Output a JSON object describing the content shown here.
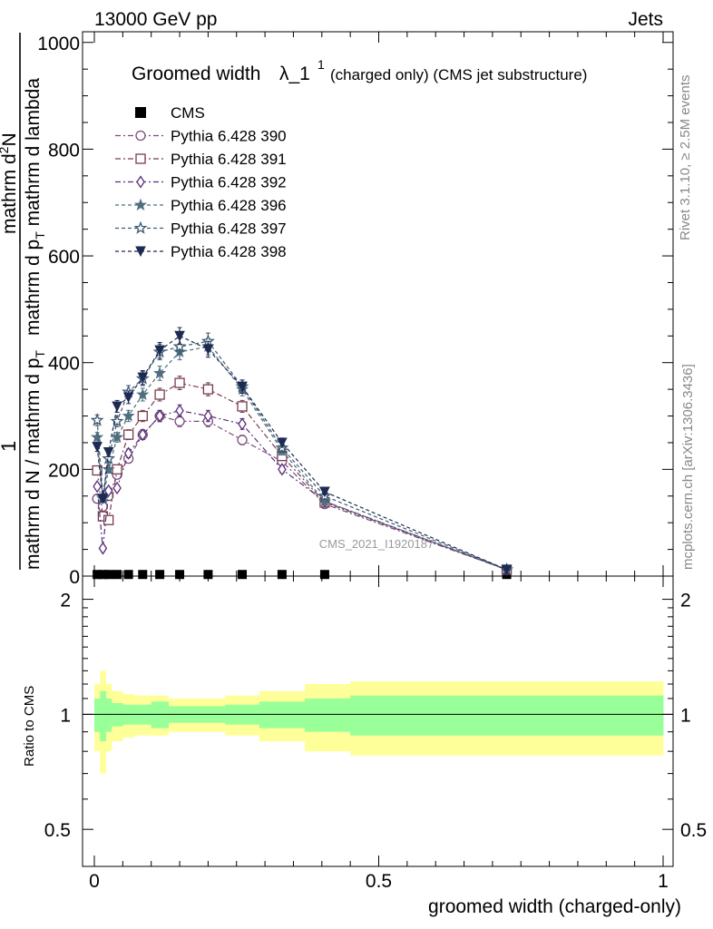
{
  "header": {
    "left": "13000 GeV pp",
    "right": "Jets"
  },
  "side_labels": {
    "rivet": "Rivet 3.1.10, ≥ 2.5M events",
    "mcplots": "mcplots.cern.ch [arXiv:1306.3436]"
  },
  "title": {
    "main": "Groomed width",
    "symbol": "λ_1",
    "superscript": "1",
    "paren": "(charged only) (CMS jet substructure)"
  },
  "watermark": "CMS_2021_I1920187",
  "y_axis_label": {
    "numerator": "mathrm d",
    "numerator_sup": "2",
    "numerator_N": "N",
    "denominator": "mathrm d p",
    "denominator_sub": "T",
    "denominator_tail": " mathrm d lambda",
    "lead_num": "1",
    "lead_den": "mathrm d N / mathrm d p",
    "lead_den_sub": "T"
  },
  "ratio_ylabel": "Ratio to CMS",
  "x_axis_label": "groomed width (charged-only)",
  "chart_data": [
    {
      "type": "line",
      "xlim": [
        0,
        1
      ],
      "ylim": [
        0,
        1020
      ],
      "xticks": [
        0,
        0.5,
        1
      ],
      "xtick_labels": [
        "0",
        "0.5",
        "1"
      ],
      "yticks": [
        0,
        200,
        400,
        600,
        800,
        1000
      ],
      "ytick_labels": [
        "0",
        "200",
        "400",
        "600",
        "800",
        "1000"
      ],
      "x": [
        0.005,
        0.015,
        0.025,
        0.04,
        0.06,
        0.085,
        0.115,
        0.15,
        0.2,
        0.26,
        0.33,
        0.405,
        0.725
      ],
      "series": [
        {
          "name": "CMS",
          "color": "#000000",
          "marker": "square-filled",
          "values": [
            3,
            3,
            3,
            3,
            3,
            3,
            3,
            3,
            3,
            3,
            3,
            3,
            3
          ]
        },
        {
          "name": "Pythia 6.428 390",
          "color": "#7a4a7a",
          "marker": "circle-open",
          "dash": "6,3,2,3",
          "values": [
            145,
            130,
            150,
            190,
            220,
            265,
            300,
            290,
            290,
            255,
            215,
            135,
            12
          ]
        },
        {
          "name": "Pythia 6.428 391",
          "color": "#7a3b4e",
          "marker": "square-open",
          "dash": "6,3,2,3",
          "values": [
            198,
            112,
            105,
            200,
            265,
            300,
            340,
            362,
            350,
            318,
            225,
            138,
            12
          ]
        },
        {
          "name": "Pythia 6.428 392",
          "color": "#5a2e7a",
          "marker": "diamond-open",
          "dash": "6,3,2,3",
          "values": [
            168,
            52,
            160,
            165,
            230,
            265,
            300,
            310,
            300,
            285,
            200,
            140,
            12
          ]
        },
        {
          "name": "Pythia 6.428 396",
          "color": "#4f6e7e",
          "marker": "star-filled",
          "dash": "4,3",
          "values": [
            260,
            145,
            200,
            260,
            300,
            340,
            380,
            420,
            430,
            350,
            235,
            140,
            12
          ]
        },
        {
          "name": "Pythia 6.428 397",
          "color": "#3d5a72",
          "marker": "star-open",
          "dash": "4,3",
          "values": [
            292,
            148,
            220,
            290,
            345,
            370,
            420,
            430,
            440,
            355,
            240,
            150,
            12
          ]
        },
        {
          "name": "Pythia 6.428 398",
          "color": "#1d2a52",
          "marker": "triangle-down-filled",
          "dash": "4,3",
          "values": [
            242,
            145,
            232,
            318,
            335,
            372,
            423,
            450,
            425,
            355,
            250,
            158,
            12
          ]
        }
      ],
      "legend_placement": "top-left"
    },
    {
      "type": "area",
      "title": "",
      "ylabel": "Ratio to CMS",
      "xlim": [
        0,
        1
      ],
      "ylim": [
        0.4,
        2.3
      ],
      "yticks": [
        0.5,
        1,
        2
      ],
      "ytick_labels": [
        "0.5",
        "1",
        "2"
      ],
      "bins": [
        0,
        0.01,
        0.02,
        0.03,
        0.05,
        0.07,
        0.1,
        0.13,
        0.17,
        0.23,
        0.29,
        0.37,
        0.45,
        1.0
      ],
      "band_outer": {
        "color": "#ffff99",
        "upper": [
          1.2,
          1.3,
          1.2,
          1.15,
          1.13,
          1.12,
          1.12,
          1.1,
          1.1,
          1.12,
          1.15,
          1.2,
          1.22
        ],
        "lower": [
          0.8,
          0.7,
          0.8,
          0.85,
          0.87,
          0.88,
          0.88,
          0.9,
          0.9,
          0.88,
          0.85,
          0.8,
          0.78
        ]
      },
      "band_inner": {
        "color": "#99ff99",
        "upper": [
          1.1,
          1.15,
          1.1,
          1.07,
          1.06,
          1.06,
          1.08,
          1.05,
          1.05,
          1.06,
          1.08,
          1.1,
          1.12
        ],
        "lower": [
          0.9,
          0.85,
          0.9,
          0.93,
          0.94,
          0.94,
          0.92,
          0.95,
          0.95,
          0.94,
          0.92,
          0.9,
          0.88
        ]
      },
      "reference_line": 1
    }
  ]
}
